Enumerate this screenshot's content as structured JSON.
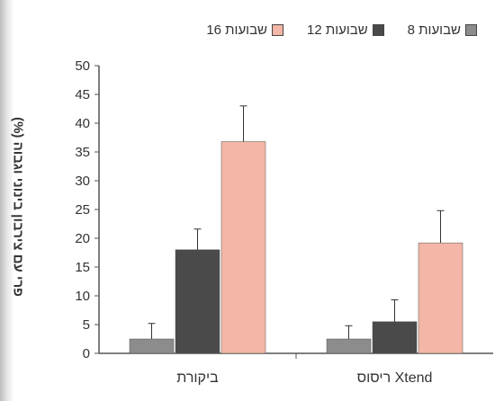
{
  "chart_data": {
    "type": "bar",
    "categories": [
      "ביקורת",
      "ריסוס Xtend"
    ],
    "series": [
      {
        "name": "שבועות 8",
        "color": "#8c8c8c",
        "values": [
          2.5,
          2.5
        ],
        "errors": [
          2.7,
          2.3
        ]
      },
      {
        "name": "שבועות 12",
        "color": "#4a4a4a",
        "values": [
          18,
          5.5
        ],
        "errors": [
          3.6,
          3.8
        ]
      },
      {
        "name": "שבועות 16",
        "color": "#f4b6a6",
        "values": [
          36.8,
          19.2
        ],
        "errors": [
          6.2,
          5.6
        ]
      }
    ],
    "ylabel": "פרי עם צירבון בינוני וגבוה (%)",
    "ylim": [
      0,
      50
    ],
    "yticks": [
      0,
      5,
      10,
      15,
      20,
      25,
      30,
      35,
      40,
      45,
      50
    ],
    "grid": false,
    "legend_position": "top"
  }
}
